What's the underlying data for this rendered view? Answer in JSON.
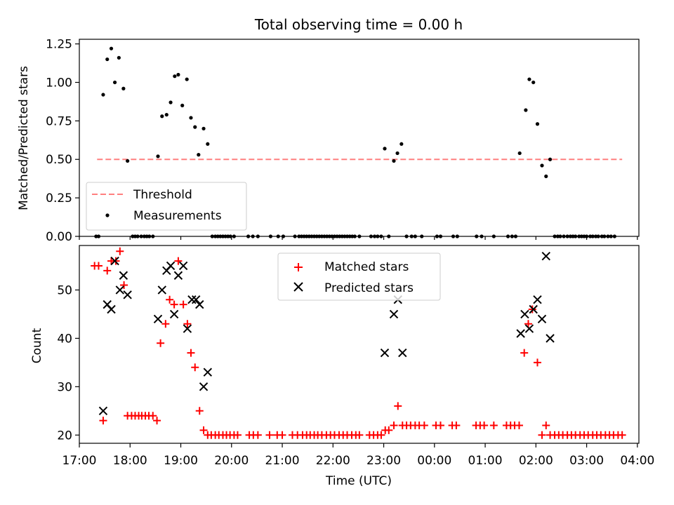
{
  "chart_data": [
    {
      "type": "scatter",
      "panel": "top",
      "title": "Total observing time = 0.00 h",
      "ylabel": "Matched/Predicted stars",
      "ylim": [
        0,
        1.28
      ],
      "yticks": [
        0,
        0.25,
        0.5,
        0.75,
        1.0,
        1.25
      ],
      "ytick_labels": [
        "0.00",
        "0.25",
        "0.50",
        "0.75",
        "1.00",
        "1.25"
      ],
      "legend_position": "lower-left",
      "threshold": {
        "name": "Threshold",
        "value": 0.5,
        "x_range": [
          17.35,
          27.7
        ],
        "color": "#ff7f7f"
      },
      "series": [
        {
          "name": "Measurements",
          "color": "#000000",
          "points": [
            [
              17.33,
              0
            ],
            [
              17.38,
              0
            ],
            [
              17.47,
              0.92
            ],
            [
              17.55,
              1.15
            ],
            [
              17.63,
              1.22
            ],
            [
              17.7,
              1.0
            ],
            [
              17.78,
              1.16
            ],
            [
              17.87,
              0.96
            ],
            [
              17.95,
              0.49
            ],
            [
              18.05,
              0
            ],
            [
              18.1,
              0
            ],
            [
              18.15,
              0
            ],
            [
              18.22,
              0
            ],
            [
              18.28,
              0
            ],
            [
              18.33,
              0
            ],
            [
              18.38,
              0
            ],
            [
              18.45,
              0
            ],
            [
              18.55,
              0.52
            ],
            [
              18.63,
              0.78
            ],
            [
              18.72,
              0.79
            ],
            [
              18.8,
              0.87
            ],
            [
              18.88,
              1.04
            ],
            [
              18.95,
              1.05
            ],
            [
              19.03,
              0.85
            ],
            [
              19.12,
              1.02
            ],
            [
              19.2,
              0.77
            ],
            [
              19.28,
              0.71
            ],
            [
              19.35,
              0.53
            ],
            [
              19.45,
              0.7
            ],
            [
              19.53,
              0.6
            ],
            [
              19.62,
              0
            ],
            [
              19.68,
              0
            ],
            [
              19.73,
              0
            ],
            [
              19.78,
              0
            ],
            [
              19.83,
              0
            ],
            [
              19.88,
              0
            ],
            [
              19.93,
              0
            ],
            [
              19.98,
              0
            ],
            [
              20.05,
              0
            ],
            [
              20.33,
              0
            ],
            [
              20.42,
              0
            ],
            [
              20.52,
              0
            ],
            [
              20.77,
              0
            ],
            [
              20.92,
              0
            ],
            [
              21.02,
              0
            ],
            [
              21.25,
              0
            ],
            [
              21.33,
              0
            ],
            [
              21.38,
              0
            ],
            [
              21.43,
              0
            ],
            [
              21.48,
              0
            ],
            [
              21.53,
              0
            ],
            [
              21.58,
              0
            ],
            [
              21.63,
              0
            ],
            [
              21.68,
              0
            ],
            [
              21.73,
              0
            ],
            [
              21.78,
              0
            ],
            [
              21.83,
              0
            ],
            [
              21.88,
              0
            ],
            [
              21.93,
              0
            ],
            [
              21.98,
              0
            ],
            [
              22.03,
              0
            ],
            [
              22.08,
              0
            ],
            [
              22.13,
              0
            ],
            [
              22.18,
              0
            ],
            [
              22.23,
              0
            ],
            [
              22.28,
              0
            ],
            [
              22.33,
              0
            ],
            [
              22.38,
              0
            ],
            [
              22.43,
              0
            ],
            [
              22.52,
              0
            ],
            [
              22.75,
              0
            ],
            [
              22.82,
              0
            ],
            [
              22.88,
              0
            ],
            [
              22.95,
              0
            ],
            [
              23.02,
              0.57
            ],
            [
              23.1,
              0
            ],
            [
              23.2,
              0.49
            ],
            [
              23.27,
              0.54
            ],
            [
              23.35,
              0.6
            ],
            [
              23.45,
              0
            ],
            [
              23.55,
              0
            ],
            [
              23.62,
              0
            ],
            [
              23.75,
              0
            ],
            [
              24.05,
              0
            ],
            [
              24.12,
              0
            ],
            [
              24.37,
              0
            ],
            [
              24.45,
              0
            ],
            [
              24.83,
              0
            ],
            [
              24.93,
              0
            ],
            [
              25.17,
              0
            ],
            [
              25.45,
              0
            ],
            [
              25.53,
              0
            ],
            [
              25.6,
              0
            ],
            [
              25.68,
              0.54
            ],
            [
              25.8,
              0.82
            ],
            [
              25.87,
              1.02
            ],
            [
              25.95,
              1.0
            ],
            [
              26.03,
              0.73
            ],
            [
              26.12,
              0.46
            ],
            [
              26.2,
              0.39
            ],
            [
              26.28,
              0.5
            ],
            [
              26.37,
              0
            ],
            [
              26.43,
              0
            ],
            [
              26.48,
              0
            ],
            [
              26.55,
              0
            ],
            [
              26.62,
              0
            ],
            [
              26.68,
              0
            ],
            [
              26.73,
              0
            ],
            [
              26.78,
              0
            ],
            [
              26.85,
              0
            ],
            [
              26.9,
              0
            ],
            [
              26.95,
              0
            ],
            [
              27.0,
              0
            ],
            [
              27.07,
              0
            ],
            [
              27.12,
              0
            ],
            [
              27.18,
              0
            ],
            [
              27.23,
              0
            ],
            [
              27.3,
              0
            ],
            [
              27.35,
              0
            ],
            [
              27.42,
              0
            ],
            [
              27.48,
              0
            ],
            [
              27.55,
              0
            ]
          ]
        }
      ]
    },
    {
      "type": "scatter",
      "panel": "bottom",
      "xlabel": "Time (UTC)",
      "ylabel": "Count",
      "xlim": [
        17.0,
        28.03
      ],
      "xticks": [
        "17:00",
        "18:00",
        "19:00",
        "20:00",
        "21:00",
        "22:00",
        "23:00",
        "00:00",
        "01:00",
        "02:00",
        "03:00",
        "04:00"
      ],
      "ylim": [
        18.3,
        59.2
      ],
      "yticks": [
        20,
        30,
        40,
        50
      ],
      "legend_position": "upper-center",
      "series": [
        {
          "name": "Matched stars",
          "marker": "+",
          "color": "#ff0000",
          "points": [
            [
              17.3,
              55
            ],
            [
              17.38,
              55
            ],
            [
              17.47,
              23
            ],
            [
              17.55,
              54
            ],
            [
              17.63,
              56
            ],
            [
              17.72,
              56
            ],
            [
              17.8,
              58
            ],
            [
              17.88,
              51
            ],
            [
              17.95,
              24
            ],
            [
              18.03,
              24
            ],
            [
              18.1,
              24
            ],
            [
              18.17,
              24
            ],
            [
              18.23,
              24
            ],
            [
              18.3,
              24
            ],
            [
              18.37,
              24
            ],
            [
              18.45,
              24
            ],
            [
              18.53,
              23
            ],
            [
              18.6,
              39
            ],
            [
              18.7,
              43
            ],
            [
              18.78,
              48
            ],
            [
              18.87,
              47
            ],
            [
              18.95,
              56
            ],
            [
              19.05,
              47
            ],
            [
              19.13,
              43
            ],
            [
              19.2,
              37
            ],
            [
              19.28,
              34
            ],
            [
              19.37,
              25
            ],
            [
              19.45,
              21
            ],
            [
              19.53,
              20
            ],
            [
              19.6,
              20
            ],
            [
              19.68,
              20
            ],
            [
              19.75,
              20
            ],
            [
              19.83,
              20
            ],
            [
              19.9,
              20
            ],
            [
              19.97,
              20
            ],
            [
              20.05,
              20
            ],
            [
              20.12,
              20
            ],
            [
              20.35,
              20
            ],
            [
              20.43,
              20
            ],
            [
              20.52,
              20
            ],
            [
              20.75,
              20
            ],
            [
              20.9,
              20
            ],
            [
              21.0,
              20
            ],
            [
              21.2,
              20
            ],
            [
              21.3,
              20
            ],
            [
              21.4,
              20
            ],
            [
              21.48,
              20
            ],
            [
              21.55,
              20
            ],
            [
              21.63,
              20
            ],
            [
              21.7,
              20
            ],
            [
              21.78,
              20
            ],
            [
              21.87,
              20
            ],
            [
              21.95,
              20
            ],
            [
              22.03,
              20
            ],
            [
              22.12,
              20
            ],
            [
              22.2,
              20
            ],
            [
              22.28,
              20
            ],
            [
              22.37,
              20
            ],
            [
              22.45,
              20
            ],
            [
              22.52,
              20
            ],
            [
              22.72,
              20
            ],
            [
              22.8,
              20
            ],
            [
              22.88,
              20
            ],
            [
              22.95,
              20
            ],
            [
              23.03,
              21
            ],
            [
              23.1,
              21
            ],
            [
              23.2,
              22
            ],
            [
              23.28,
              26
            ],
            [
              23.37,
              22
            ],
            [
              23.45,
              22
            ],
            [
              23.53,
              22
            ],
            [
              23.62,
              22
            ],
            [
              23.7,
              22
            ],
            [
              23.8,
              22
            ],
            [
              24.03,
              22
            ],
            [
              24.12,
              22
            ],
            [
              24.35,
              22
            ],
            [
              24.43,
              22
            ],
            [
              24.82,
              22
            ],
            [
              24.9,
              22
            ],
            [
              24.98,
              22
            ],
            [
              25.17,
              22
            ],
            [
              25.42,
              22
            ],
            [
              25.5,
              22
            ],
            [
              25.58,
              22
            ],
            [
              25.67,
              22
            ],
            [
              25.77,
              37
            ],
            [
              25.85,
              43
            ],
            [
              25.93,
              46
            ],
            [
              26.03,
              35
            ],
            [
              26.12,
              20
            ],
            [
              26.2,
              22
            ],
            [
              26.28,
              20
            ],
            [
              26.37,
              20
            ],
            [
              26.45,
              20
            ],
            [
              26.53,
              20
            ],
            [
              26.62,
              20
            ],
            [
              26.7,
              20
            ],
            [
              26.78,
              20
            ],
            [
              26.87,
              20
            ],
            [
              26.95,
              20
            ],
            [
              27.03,
              20
            ],
            [
              27.12,
              20
            ],
            [
              27.2,
              20
            ],
            [
              27.28,
              20
            ],
            [
              27.37,
              20
            ],
            [
              27.45,
              20
            ],
            [
              27.53,
              20
            ],
            [
              27.62,
              20
            ],
            [
              27.7,
              20
            ]
          ]
        },
        {
          "name": "Predicted stars",
          "marker": "x",
          "color": "#000000",
          "points": [
            [
              17.47,
              25
            ],
            [
              17.55,
              47
            ],
            [
              17.63,
              46
            ],
            [
              17.7,
              56
            ],
            [
              17.8,
              50
            ],
            [
              17.87,
              53
            ],
            [
              17.95,
              49
            ],
            [
              18.55,
              44
            ],
            [
              18.63,
              50
            ],
            [
              18.72,
              54
            ],
            [
              18.8,
              55
            ],
            [
              18.87,
              45
            ],
            [
              18.95,
              53
            ],
            [
              19.05,
              55
            ],
            [
              19.13,
              42
            ],
            [
              19.22,
              48
            ],
            [
              19.3,
              48
            ],
            [
              19.37,
              47
            ],
            [
              19.45,
              30
            ],
            [
              19.53,
              33
            ],
            [
              23.02,
              37
            ],
            [
              23.2,
              45
            ],
            [
              23.28,
              48
            ],
            [
              23.37,
              37
            ],
            [
              25.7,
              41
            ],
            [
              25.78,
              45
            ],
            [
              25.87,
              42
            ],
            [
              25.95,
              46
            ],
            [
              26.03,
              48
            ],
            [
              26.12,
              44
            ],
            [
              26.2,
              57
            ],
            [
              26.28,
              40
            ]
          ]
        }
      ]
    }
  ]
}
